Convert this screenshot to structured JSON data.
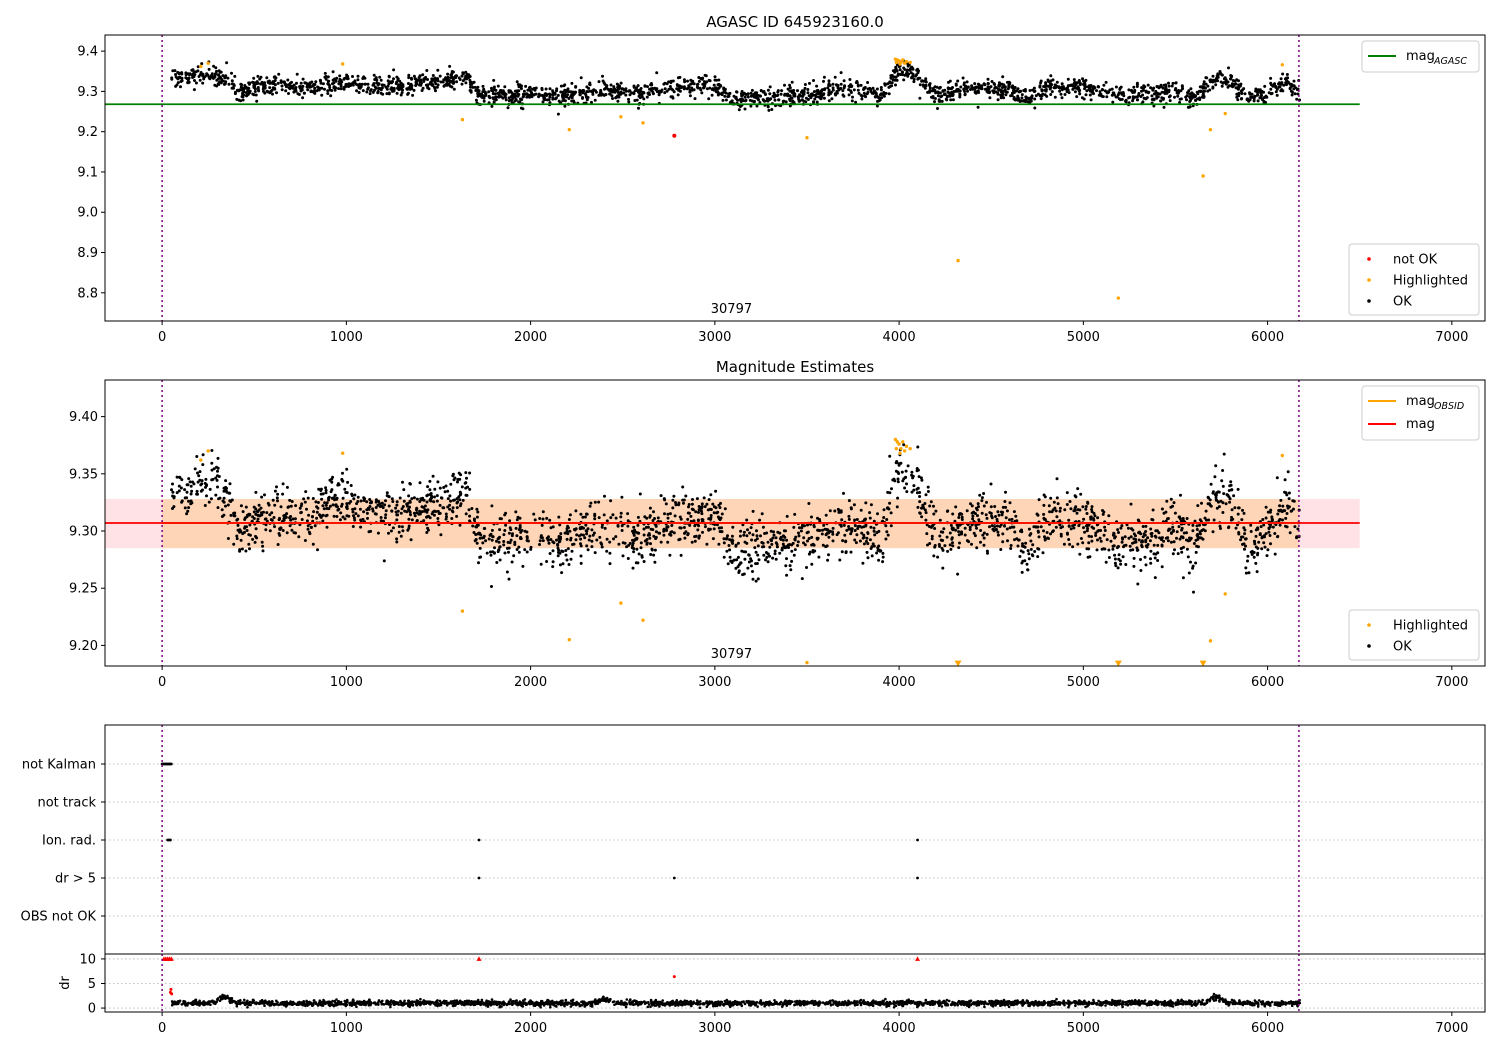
{
  "chart_data": [
    {
      "type": "scatter",
      "title": "AGASC ID 645923160.0",
      "xlim": [
        -310,
        7180
      ],
      "ylim": [
        8.73,
        9.44
      ],
      "xticks": [
        0,
        1000,
        2000,
        3000,
        4000,
        5000,
        6000,
        7000
      ],
      "yticks": [
        8.8,
        8.9,
        9.0,
        9.1,
        9.2,
        9.3,
        9.4
      ],
      "ytick_format": 1,
      "obsid_label": "30797",
      "obsid_label_x": 3090,
      "vlines": [
        0,
        6170
      ],
      "reference_line": {
        "name": "mag_AGASC",
        "value": 9.268,
        "x": [
          -310,
          6500
        ],
        "color": "#008000"
      },
      "legend_top": {
        "placement": "top-right",
        "entries": [
          {
            "main": "mag",
            "sub": "AGASC",
            "color": "#008000",
            "kind": "line"
          }
        ]
      },
      "legend_bottom": {
        "placement": "lower-right",
        "entries": [
          {
            "label": "not OK",
            "color": "#ff0000",
            "kind": "point"
          },
          {
            "label": "Highlighted",
            "color": "#ffa500",
            "kind": "point"
          },
          {
            "label": "OK",
            "color": "#000000",
            "kind": "point"
          }
        ]
      },
      "series": [
        {
          "name": "OK",
          "color": "#000000",
          "x_range": [
            50,
            6175
          ],
          "segments": [
            [
              50,
              9.33
            ],
            [
              150,
              9.335
            ],
            [
              250,
              9.345
            ],
            [
              350,
              9.33
            ],
            [
              420,
              9.295
            ],
            [
              500,
              9.31
            ],
            [
              700,
              9.315
            ],
            [
              800,
              9.305
            ],
            [
              900,
              9.325
            ],
            [
              1000,
              9.325
            ],
            [
              1100,
              9.315
            ],
            [
              1300,
              9.315
            ],
            [
              1500,
              9.325
            ],
            [
              1650,
              9.335
            ],
            [
              1720,
              9.29
            ],
            [
              1850,
              9.29
            ],
            [
              2000,
              9.295
            ],
            [
              2150,
              9.29
            ],
            [
              2400,
              9.305
            ],
            [
              2600,
              9.295
            ],
            [
              2800,
              9.31
            ],
            [
              3000,
              9.315
            ],
            [
              3100,
              9.28
            ],
            [
              3300,
              9.285
            ],
            [
              3500,
              9.29
            ],
            [
              3700,
              9.31
            ],
            [
              3900,
              9.29
            ],
            [
              4000,
              9.355
            ],
            [
              4100,
              9.34
            ],
            [
              4200,
              9.29
            ],
            [
              4400,
              9.31
            ],
            [
              4600,
              9.305
            ],
            [
              4700,
              9.28
            ],
            [
              4800,
              9.31
            ],
            [
              5000,
              9.31
            ],
            [
              5150,
              9.29
            ],
            [
              5350,
              9.29
            ],
            [
              5500,
              9.305
            ],
            [
              5600,
              9.285
            ],
            [
              5700,
              9.325
            ],
            [
              5800,
              9.33
            ],
            [
              5900,
              9.28
            ],
            [
              6000,
              9.3
            ],
            [
              6100,
              9.325
            ],
            [
              6175,
              9.3
            ]
          ],
          "noise": 0.012,
          "count": 2400
        },
        {
          "name": "Highlighted",
          "color": "#ffa500",
          "points": [
            [
              210,
              9.362
            ],
            [
              250,
              9.37
            ],
            [
              980,
              9.368
            ],
            [
              1630,
              9.23
            ],
            [
              2210,
              9.205
            ],
            [
              2490,
              9.237
            ],
            [
              2610,
              9.222
            ],
            [
              3500,
              9.185
            ],
            [
              4320,
              8.88
            ],
            [
              5190,
              8.787
            ],
            [
              5650,
              9.09
            ],
            [
              5690,
              9.205
            ],
            [
              5770,
              9.245
            ],
            [
              6080,
              9.366
            ],
            [
              3980,
              9.38
            ],
            [
              3990,
              9.378
            ],
            [
              4000,
              9.376
            ],
            [
              4010,
              9.372
            ],
            [
              4020,
              9.378
            ],
            [
              4030,
              9.37
            ],
            [
              4040,
              9.374
            ],
            [
              4060,
              9.372
            ],
            [
              3985,
              9.372
            ],
            [
              4005,
              9.368
            ]
          ]
        },
        {
          "name": "not OK",
          "color": "#ff0000",
          "points": [
            [
              2780,
              9.19
            ]
          ]
        }
      ]
    },
    {
      "type": "scatter",
      "title": "Magnitude Estimates",
      "xlim": [
        -310,
        7180
      ],
      "ylim": [
        9.182,
        9.432
      ],
      "xticks": [
        0,
        1000,
        2000,
        3000,
        4000,
        5000,
        6000,
        7000
      ],
      "yticks": [
        9.2,
        9.25,
        9.3,
        9.35,
        9.4
      ],
      "ytick_format": 2,
      "obsid_label": "30797",
      "obsid_label_x": 3090,
      "vlines": [
        0,
        6170
      ],
      "mean_line": {
        "name": "mag",
        "value": 9.307,
        "color": "#ff0000",
        "x": [
          -310,
          6500
        ]
      },
      "bands": [
        {
          "y": [
            9.285,
            9.328
          ],
          "x": [
            -310,
            6500
          ],
          "color": "#ff9eaa",
          "opacity": 0.3
        },
        {
          "y": [
            9.285,
            9.328
          ],
          "x": [
            0,
            6170
          ],
          "color": "#ffa500",
          "opacity": 0.2
        }
      ],
      "obsid_line": {
        "value": 9.307,
        "color": "#ffa500",
        "x": [
          0,
          6170
        ]
      },
      "legend_top": {
        "placement": "top-right",
        "entries": [
          {
            "main": "mag",
            "sub": "OBSID",
            "color": "#ffa500",
            "kind": "line"
          },
          {
            "main": "mag",
            "sub": "",
            "color": "#ff0000",
            "kind": "line"
          }
        ]
      },
      "legend_bottom": {
        "placement": "lower-right",
        "entries": [
          {
            "label": "Highlighted",
            "color": "#ffa500",
            "kind": "point"
          },
          {
            "label": "OK",
            "color": "#000000",
            "kind": "point"
          }
        ]
      },
      "series": [
        {
          "name": "OK",
          "color": "#000000",
          "x_range": [
            50,
            6175
          ],
          "segments": [
            [
              50,
              9.33
            ],
            [
              150,
              9.335
            ],
            [
              250,
              9.345
            ],
            [
              350,
              9.33
            ],
            [
              420,
              9.295
            ],
            [
              500,
              9.31
            ],
            [
              700,
              9.315
            ],
            [
              800,
              9.305
            ],
            [
              900,
              9.325
            ],
            [
              1000,
              9.325
            ],
            [
              1100,
              9.315
            ],
            [
              1300,
              9.315
            ],
            [
              1500,
              9.325
            ],
            [
              1650,
              9.335
            ],
            [
              1720,
              9.29
            ],
            [
              1850,
              9.29
            ],
            [
              2000,
              9.295
            ],
            [
              2150,
              9.29
            ],
            [
              2400,
              9.305
            ],
            [
              2600,
              9.295
            ],
            [
              2800,
              9.31
            ],
            [
              3000,
              9.315
            ],
            [
              3100,
              9.28
            ],
            [
              3300,
              9.285
            ],
            [
              3500,
              9.29
            ],
            [
              3700,
              9.31
            ],
            [
              3900,
              9.29
            ],
            [
              4000,
              9.355
            ],
            [
              4100,
              9.34
            ],
            [
              4200,
              9.29
            ],
            [
              4400,
              9.31
            ],
            [
              4600,
              9.305
            ],
            [
              4700,
              9.28
            ],
            [
              4800,
              9.31
            ],
            [
              5000,
              9.31
            ],
            [
              5150,
              9.29
            ],
            [
              5350,
              9.29
            ],
            [
              5500,
              9.305
            ],
            [
              5600,
              9.285
            ],
            [
              5700,
              9.325
            ],
            [
              5800,
              9.33
            ],
            [
              5900,
              9.28
            ],
            [
              6000,
              9.3
            ],
            [
              6100,
              9.325
            ],
            [
              6175,
              9.3
            ]
          ],
          "noise": 0.012,
          "count": 2400
        },
        {
          "name": "Highlighted",
          "color": "#ffa500",
          "points": [
            [
              210,
              9.362
            ],
            [
              250,
              9.37
            ],
            [
              980,
              9.368
            ],
            [
              1630,
              9.23
            ],
            [
              2210,
              9.205
            ],
            [
              2490,
              9.237
            ],
            [
              2610,
              9.222
            ],
            [
              3500,
              9.185
            ],
            [
              5690,
              9.204
            ],
            [
              5770,
              9.245
            ],
            [
              6080,
              9.366
            ],
            [
              3980,
              9.38
            ],
            [
              3990,
              9.378
            ],
            [
              4000,
              9.376
            ],
            [
              4010,
              9.372
            ],
            [
              4020,
              9.378
            ],
            [
              4030,
              9.37
            ],
            [
              4040,
              9.374
            ],
            [
              4060,
              9.372
            ],
            [
              3985,
              9.372
            ],
            [
              4005,
              9.368
            ]
          ]
        },
        {
          "name": "Highlighted (below axis)",
          "color": "#ffa500",
          "marker": "triangle-down",
          "points": [
            [
              4320,
              9.185
            ],
            [
              5190,
              9.185
            ],
            [
              5650,
              9.185
            ]
          ]
        }
      ]
    },
    {
      "type": "scatter",
      "title": "",
      "xlim": [
        -310,
        7180
      ],
      "xticks": [
        0,
        1000,
        2000,
        3000,
        4000,
        5000,
        6000,
        7000
      ],
      "vlines": [
        0,
        6170
      ],
      "flag_labels": [
        "not Kalman",
        "not track",
        "Ion. rad.",
        "dr > 5",
        "OBS not OK"
      ],
      "flags": [
        {
          "label": "not Kalman",
          "x": [
            0,
            5,
            10,
            15,
            20,
            25,
            30,
            35,
            40,
            45,
            50
          ]
        },
        {
          "label": "not track",
          "x": []
        },
        {
          "label": "Ion. rad.",
          "x": [
            30,
            35,
            40,
            45,
            1720,
            4100
          ]
        },
        {
          "label": "dr > 5",
          "x": [
            1720,
            2780,
            4100
          ]
        },
        {
          "label": "OBS not OK",
          "x": []
        }
      ],
      "dr": {
        "ylabel": "dr",
        "ylim": [
          -0.8,
          11
        ],
        "yticks": [
          0,
          5,
          10
        ],
        "clip_value": 10,
        "base_level": 1.0,
        "noise": 0.45,
        "count": 2600,
        "clipped_points": [
          [
            10,
            10
          ],
          [
            20,
            10
          ],
          [
            30,
            10
          ],
          [
            40,
            10
          ],
          [
            50,
            10
          ],
          [
            1720,
            10
          ],
          [
            4100,
            10
          ]
        ],
        "red_points": [
          [
            45,
            3.2
          ],
          [
            48,
            3.8
          ],
          [
            52,
            2.9
          ],
          [
            2780,
            6.4
          ]
        ],
        "bumps": [
          [
            5720,
            1.4
          ],
          [
            335,
            1.3
          ],
          [
            2400,
            0.8
          ]
        ]
      }
    }
  ]
}
